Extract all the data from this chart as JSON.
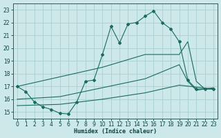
{
  "xlabel": "Humidex (Indice chaleur)",
  "background_color": "#cce8e8",
  "grid_color": "#aacece",
  "line_color": "#1a6a60",
  "xlim": [
    -0.5,
    23.5
  ],
  "ylim": [
    14.5,
    23.5
  ],
  "xticks": [
    0,
    1,
    2,
    3,
    4,
    5,
    6,
    7,
    8,
    9,
    10,
    11,
    12,
    13,
    14,
    15,
    16,
    17,
    18,
    19,
    20,
    21,
    22,
    23
  ],
  "yticks": [
    15,
    16,
    17,
    18,
    19,
    20,
    21,
    22,
    23
  ],
  "line1_x": [
    0,
    1,
    2,
    3,
    4,
    5,
    6,
    7,
    8,
    9,
    10,
    11,
    12,
    13,
    14,
    15,
    16,
    17,
    18,
    19,
    20,
    21,
    22,
    23
  ],
  "line1_y": [
    17.0,
    16.6,
    15.8,
    15.4,
    15.2,
    14.9,
    14.85,
    15.8,
    17.4,
    17.5,
    19.5,
    21.7,
    20.4,
    21.9,
    22.0,
    22.5,
    22.9,
    22.0,
    21.5,
    20.5,
    17.5,
    16.8,
    16.8,
    16.8
  ],
  "line2_x": [
    0,
    10,
    15,
    18,
    19,
    20,
    21,
    22,
    23
  ],
  "line2_y": [
    17.0,
    18.5,
    19.5,
    19.5,
    19.5,
    20.5,
    17.4,
    16.8,
    16.8
  ],
  "line3_x": [
    0,
    5,
    10,
    15,
    19,
    20,
    21,
    22,
    23
  ],
  "line3_y": [
    16.0,
    16.2,
    16.9,
    17.6,
    18.7,
    17.4,
    16.7,
    16.8,
    16.9
  ],
  "line4_x": [
    0,
    5,
    10,
    15,
    19,
    23
  ],
  "line4_y": [
    15.5,
    15.6,
    16.0,
    16.5,
    17.1,
    16.8
  ]
}
